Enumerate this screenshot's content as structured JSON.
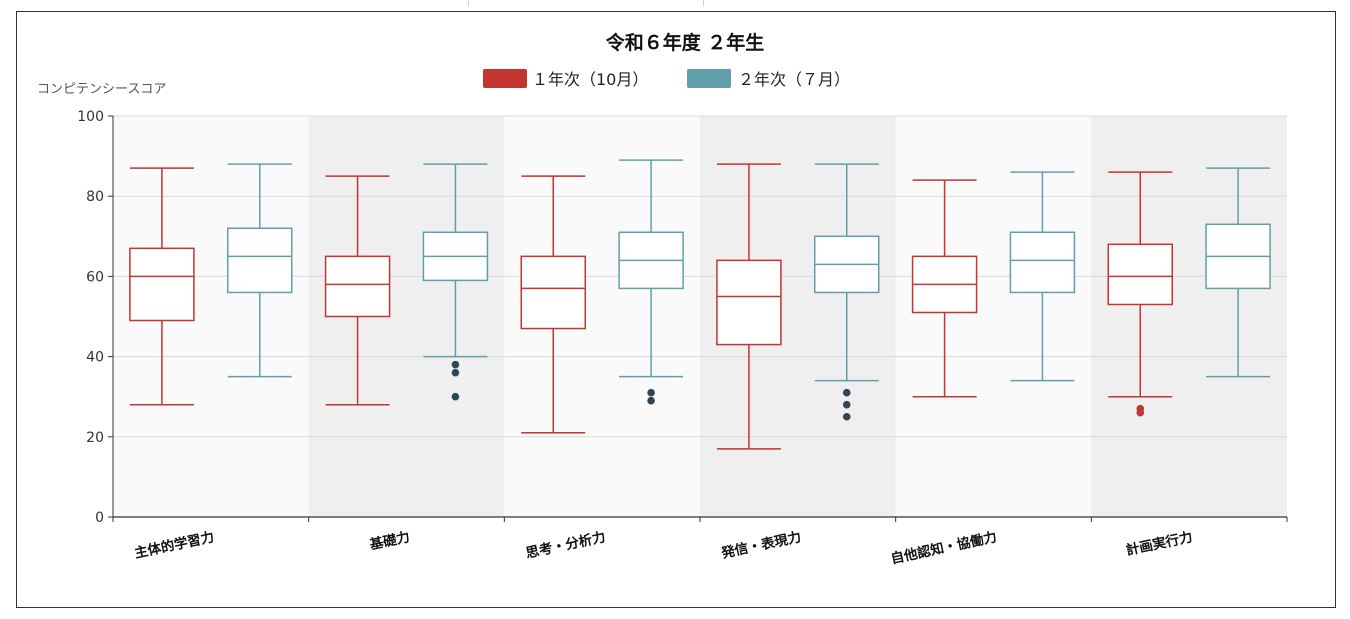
{
  "chart_data": {
    "type": "box",
    "title": "令和６年度 ２年生",
    "ylabel": "コンピテンシースコア",
    "xlabel": "",
    "ylim": [
      0,
      100
    ],
    "y_ticks": [
      0,
      20,
      40,
      60,
      80,
      100
    ],
    "grid": true,
    "legend_position": "top-center",
    "categories": [
      "主体的学習力",
      "基礎力",
      "思考・分析力",
      "発信・表現力",
      "自他認知・協働力",
      "計画実行力"
    ],
    "series": [
      {
        "name": "１年次（10月）",
        "color": "#c23531",
        "boxes": [
          {
            "min": 28,
            "q1": 49,
            "median": 60,
            "q3": 67,
            "max": 87
          },
          {
            "min": 28,
            "q1": 50,
            "median": 58,
            "q3": 65,
            "max": 85
          },
          {
            "min": 21,
            "q1": 47,
            "median": 57,
            "q3": 65,
            "max": 85
          },
          {
            "min": 17,
            "q1": 43,
            "median": 55,
            "q3": 64,
            "max": 88
          },
          {
            "min": 30,
            "q1": 51,
            "median": 58,
            "q3": 65,
            "max": 84
          },
          {
            "min": 30,
            "q1": 53,
            "median": 60,
            "q3": 68,
            "max": 86
          }
        ],
        "outliers": [
          [],
          [],
          [],
          [],
          [],
          [
            27,
            26
          ]
        ]
      },
      {
        "name": "２年次（７月）",
        "color": "#61a0a8",
        "boxes": [
          {
            "min": 35,
            "q1": 56,
            "median": 65,
            "q3": 72,
            "max": 88
          },
          {
            "min": 40,
            "q1": 59,
            "median": 65,
            "q3": 71,
            "max": 88
          },
          {
            "min": 35,
            "q1": 57,
            "median": 64,
            "q3": 71,
            "max": 89
          },
          {
            "min": 34,
            "q1": 56,
            "median": 63,
            "q3": 70,
            "max": 88
          },
          {
            "min": 34,
            "q1": 56,
            "median": 64,
            "q3": 71,
            "max": 86
          },
          {
            "min": 35,
            "q1": 57,
            "median": 65,
            "q3": 73,
            "max": 87
          }
        ],
        "outliers": [
          [],
          [
            38,
            36,
            30
          ],
          [
            31,
            29
          ],
          [
            31,
            28,
            25
          ],
          [],
          []
        ]
      }
    ],
    "outlier_color": "#2f4554"
  }
}
